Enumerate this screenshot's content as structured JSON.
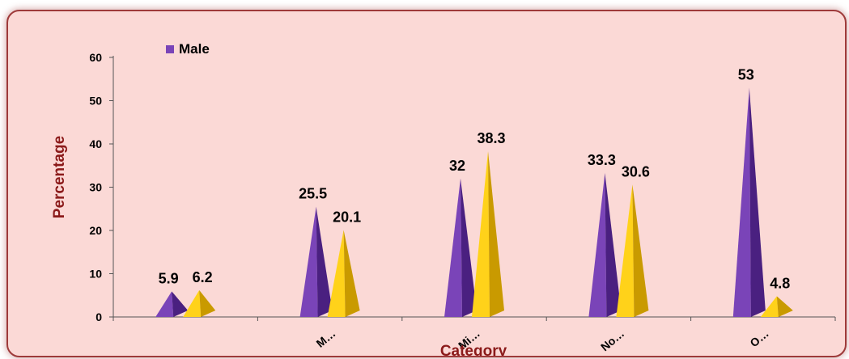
{
  "chart_data": {
    "type": "bar",
    "bar_shape": "3d-pyramid",
    "categories": [
      "",
      "M…",
      "Mi…",
      "No…",
      "O…"
    ],
    "series": [
      {
        "name": "Male",
        "values": [
          5.9,
          25.5,
          32,
          33.3,
          53
        ]
      },
      {
        "name": "",
        "values": [
          6.2,
          20.1,
          38.3,
          30.6,
          4.8
        ]
      }
    ],
    "xlabel": "Category",
    "ylabel": "Percentage",
    "ylim": [
      0,
      60
    ],
    "yticks": [
      0,
      10,
      20,
      30,
      40,
      50,
      60
    ],
    "legend_position": "top-left",
    "grid": false
  },
  "colors": {
    "background": "#fbd9d6",
    "border": "#9e3a3a",
    "axis_title": "#8b1a1a",
    "series_male_light": "#7a44b8",
    "series_male_dark": "#4a2080",
    "series_2_light": "#ffd21a",
    "series_2_dark": "#c99a00"
  }
}
